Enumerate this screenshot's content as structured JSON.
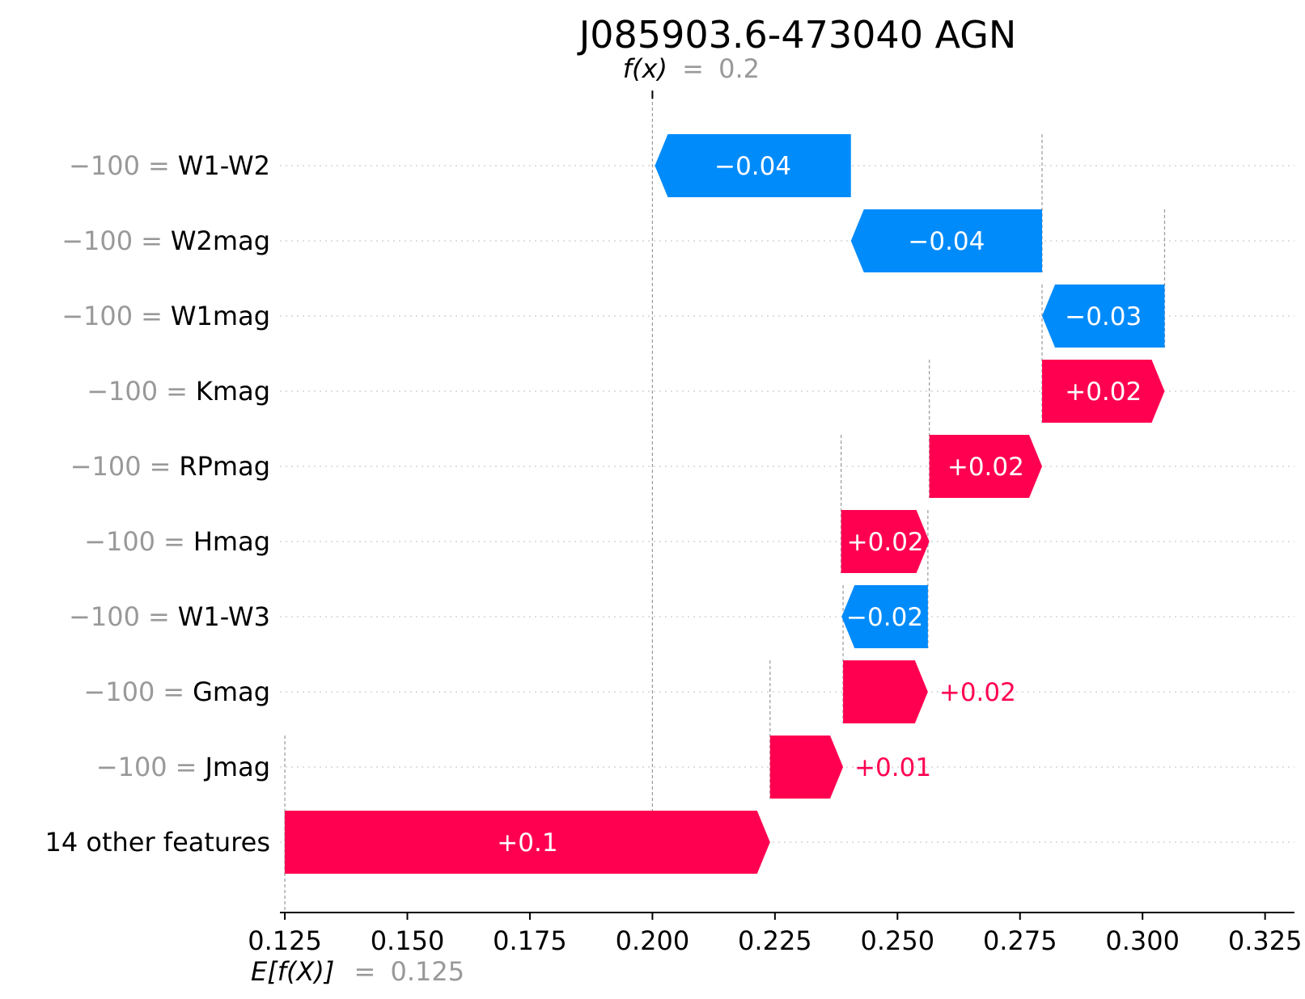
{
  "chart_data": {
    "type": "waterfall",
    "title": "J085903.6-473040 AGN",
    "fx": {
      "label": "f(x)",
      "equals": "=",
      "value": 0.2,
      "value_text": "0.2"
    },
    "base": {
      "label": "E[f(X)]",
      "equals": "=",
      "value": 0.125,
      "value_text": "0.125"
    },
    "xlim": [
      0.124,
      0.331
    ],
    "xticks": [
      0.125,
      0.15,
      0.175,
      0.2,
      0.225,
      0.25,
      0.275,
      0.3,
      0.325
    ],
    "xtick_labels": [
      "0.125",
      "0.150",
      "0.175",
      "0.200",
      "0.225",
      "0.250",
      "0.275",
      "0.300",
      "0.325"
    ],
    "colors": {
      "positive": "#ff0051",
      "negative": "#008bfb",
      "grey": "#999999",
      "grid": "#cccccc"
    },
    "features": [
      {
        "value_text": "−100",
        "eq": "=",
        "name": "W1-W2",
        "start": 0.2405,
        "end": 0.2005,
        "label": "−0.04",
        "label_inside": true
      },
      {
        "value_text": "−100",
        "eq": "=",
        "name": "W2mag",
        "start": 0.2795,
        "end": 0.2405,
        "label": "−0.04",
        "label_inside": true
      },
      {
        "value_text": "−100",
        "eq": "=",
        "name": "W1mag",
        "start": 0.3045,
        "end": 0.2795,
        "label": "−0.03",
        "label_inside": true
      },
      {
        "value_text": "−100",
        "eq": "=",
        "name": "Kmag",
        "start": 0.2795,
        "end": 0.3045,
        "label": "+0.02",
        "label_inside": true
      },
      {
        "value_text": "−100",
        "eq": "=",
        "name": "RPmag",
        "start": 0.2565,
        "end": 0.2795,
        "label": "+0.02",
        "label_inside": true
      },
      {
        "value_text": "−100",
        "eq": "=",
        "name": "Hmag",
        "start": 0.2385,
        "end": 0.2565,
        "label": "+0.02",
        "label_inside": true
      },
      {
        "value_text": "−100",
        "eq": "=",
        "name": "W1-W3",
        "start": 0.2562,
        "end": 0.2386,
        "label": "−0.02",
        "label_inside": true
      },
      {
        "value_text": "−100",
        "eq": "=",
        "name": "Gmag",
        "start": 0.2389,
        "end": 0.2562,
        "label": "+0.02",
        "label_inside": false
      },
      {
        "value_text": "−100",
        "eq": "=",
        "name": "Jmag",
        "start": 0.224,
        "end": 0.2389,
        "label": "+0.01",
        "label_inside": false
      },
      {
        "value_text": "",
        "eq": "",
        "name": "14 other features",
        "start": 0.125,
        "end": 0.224,
        "label": "+0.1",
        "label_inside": true
      }
    ]
  }
}
